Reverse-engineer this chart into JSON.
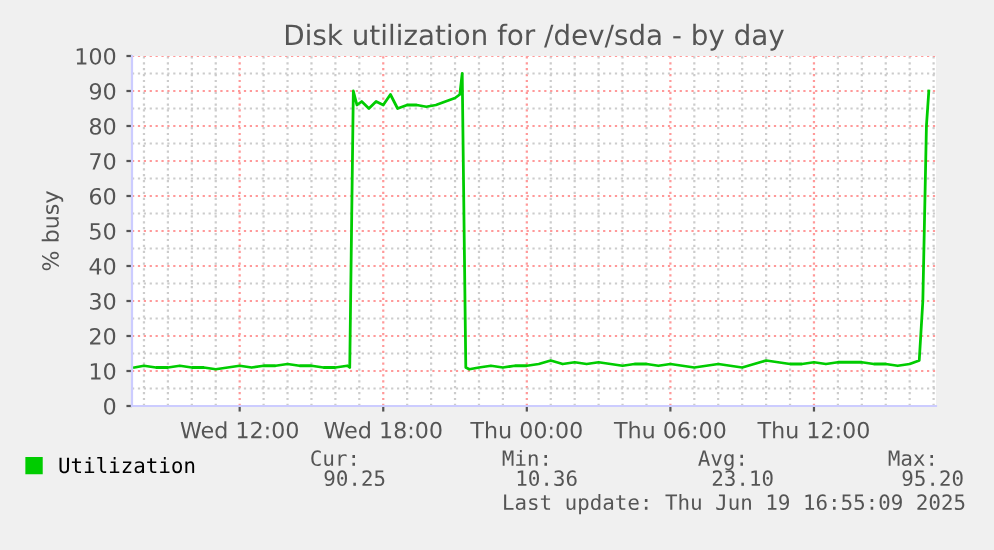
{
  "chart_data": {
    "type": "line",
    "title": "Disk utilization for /dev/sda - by day",
    "ylabel": "% busy",
    "xlim": [
      "2025-06-18T07:30",
      "2025-06-19T17:06"
    ],
    "ylim": [
      0,
      100
    ],
    "xticks": [
      {
        "value": "2025-06-18T12:00",
        "label": "Wed 12:00"
      },
      {
        "value": "2025-06-18T18:00",
        "label": "Wed 18:00"
      },
      {
        "value": "2025-06-19T00:00",
        "label": "Thu 00:00"
      },
      {
        "value": "2025-06-19T06:00",
        "label": "Thu 06:00"
      },
      {
        "value": "2025-06-19T12:00",
        "label": "Thu 12:00"
      }
    ],
    "yticks": [
      0,
      10,
      20,
      30,
      40,
      50,
      60,
      70,
      80,
      90,
      100
    ],
    "grid": true,
    "legend": "bottom",
    "marker": "none",
    "line_style": "solid",
    "series": [
      {
        "name": "Utilization",
        "color": "#00cc00",
        "x": [
          "2025-06-18T07:36",
          "2025-06-18T08:00",
          "2025-06-18T08:30",
          "2025-06-18T09:00",
          "2025-06-18T09:30",
          "2025-06-18T10:00",
          "2025-06-18T10:30",
          "2025-06-18T11:00",
          "2025-06-18T11:30",
          "2025-06-18T12:00",
          "2025-06-18T12:30",
          "2025-06-18T13:00",
          "2025-06-18T13:30",
          "2025-06-18T14:00",
          "2025-06-18T14:30",
          "2025-06-18T15:00",
          "2025-06-18T15:30",
          "2025-06-18T16:00",
          "2025-06-18T16:30",
          "2025-06-18T16:36",
          "2025-06-18T16:45",
          "2025-06-18T16:54",
          "2025-06-18T17:06",
          "2025-06-18T17:24",
          "2025-06-18T17:42",
          "2025-06-18T18:00",
          "2025-06-18T18:18",
          "2025-06-18T18:36",
          "2025-06-18T19:00",
          "2025-06-18T19:24",
          "2025-06-18T19:48",
          "2025-06-18T20:12",
          "2025-06-18T20:36",
          "2025-06-18T21:00",
          "2025-06-18T21:12",
          "2025-06-18T21:18",
          "2025-06-18T21:27",
          "2025-06-18T21:36",
          "2025-06-18T22:00",
          "2025-06-18T22:30",
          "2025-06-18T23:00",
          "2025-06-18T23:30",
          "2025-06-19T00:00",
          "2025-06-19T00:30",
          "2025-06-19T01:00",
          "2025-06-19T01:30",
          "2025-06-19T02:00",
          "2025-06-19T02:30",
          "2025-06-19T03:00",
          "2025-06-19T03:30",
          "2025-06-19T04:00",
          "2025-06-19T04:30",
          "2025-06-19T05:00",
          "2025-06-19T05:30",
          "2025-06-19T06:00",
          "2025-06-19T06:30",
          "2025-06-19T07:00",
          "2025-06-19T07:30",
          "2025-06-19T08:00",
          "2025-06-19T08:30",
          "2025-06-19T09:00",
          "2025-06-19T09:30",
          "2025-06-19T10:00",
          "2025-06-19T10:30",
          "2025-06-19T11:00",
          "2025-06-19T11:30",
          "2025-06-19T12:00",
          "2025-06-19T12:30",
          "2025-06-19T13:00",
          "2025-06-19T13:30",
          "2025-06-19T14:00",
          "2025-06-19T14:30",
          "2025-06-19T15:00",
          "2025-06-19T15:30",
          "2025-06-19T16:00",
          "2025-06-19T16:24",
          "2025-06-19T16:33",
          "2025-06-19T16:42",
          "2025-06-19T16:48"
        ],
        "values": [
          11,
          11.5,
          11,
          11,
          11.5,
          11,
          11,
          10.5,
          11,
          11.5,
          11,
          11.5,
          11.5,
          12,
          11.5,
          11.5,
          11,
          11,
          11.5,
          11,
          90,
          86,
          87,
          85,
          87,
          86,
          89,
          85,
          86,
          86,
          85.5,
          86,
          87,
          88,
          89,
          95,
          11,
          10.5,
          11,
          11.5,
          11,
          11.5,
          11.5,
          12,
          13,
          12,
          12.5,
          12,
          12.5,
          12,
          11.5,
          12,
          12,
          11.5,
          12,
          11.5,
          11,
          11.5,
          12,
          11.5,
          11,
          12,
          13,
          12.5,
          12,
          12,
          12.5,
          12,
          12.5,
          12.5,
          12.5,
          12,
          12,
          11.5,
          12,
          13,
          30,
          80,
          90
        ]
      }
    ],
    "annotations": [
      "Cur:",
      "Min:",
      "Avg:",
      "Max:",
      "90.25",
      "10.36",
      "23.10",
      "95.20",
      "Last update: Thu Jun 19 16:55:09 2025"
    ]
  }
}
